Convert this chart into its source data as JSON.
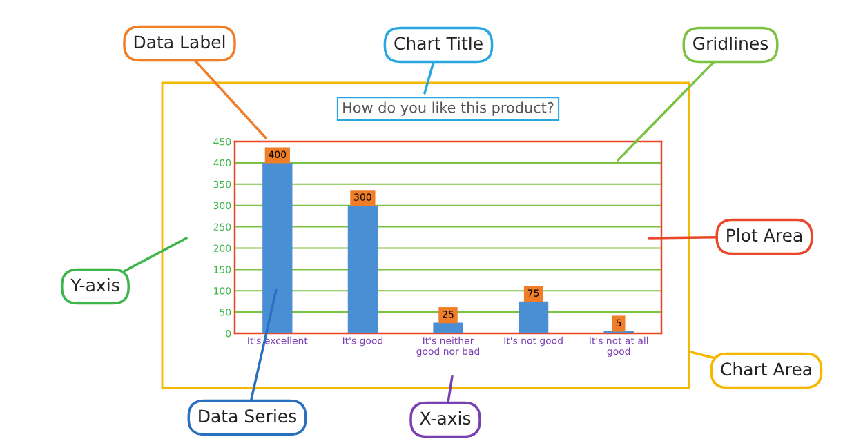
{
  "chart_data": {
    "type": "bar",
    "title": "How do you like this product?",
    "categories": [
      "It's excellent",
      "It's good",
      "It's neither good nor bad",
      "It's not good",
      "It's not at all good"
    ],
    "values": [
      400,
      300,
      25,
      75,
      5
    ],
    "color": "#4a8fd4",
    "ylim": [
      0,
      450
    ],
    "yticks": [
      0,
      50,
      100,
      150,
      200,
      250,
      300,
      350,
      400,
      450
    ],
    "grid": "y",
    "data_labels": true,
    "annotations": [
      "Data Label",
      "Chart Title",
      "Gridlines",
      "Plot Area",
      "Y-axis",
      "Chart Area",
      "Data Series",
      "X-axis"
    ]
  }
}
